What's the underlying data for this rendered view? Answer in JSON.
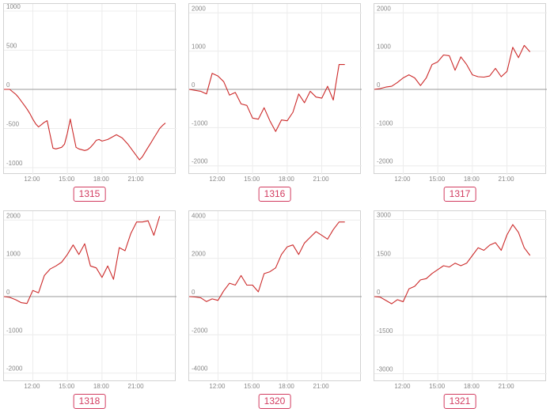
{
  "colors": {
    "line": "#cc2a2a",
    "grid": "#ececec",
    "zero": "#9a9a9a",
    "border": "#d2d2d2",
    "tick_text": "#888888",
    "badge": "#d23c60"
  },
  "chart_data": [
    {
      "type": "line",
      "label": "1315",
      "ylim": [
        -1050,
        1050
      ],
      "y_ticks": [
        1000,
        500,
        0,
        -500,
        -1000
      ],
      "y_tick_labels": [
        "1000",
        "500",
        "0",
        "-500",
        "-1000"
      ],
      "x_range": [
        9.5,
        23.5
      ],
      "x_ticks": [
        12,
        15,
        18,
        21
      ],
      "x_tick_labels": [
        "12:00",
        "15:00",
        "18:00",
        "21:00"
      ],
      "grid": true,
      "x": [
        9.5,
        9.75,
        10,
        10.25,
        10.5,
        10.75,
        11,
        11.25,
        11.5,
        11.75,
        12,
        12.25,
        12.5,
        12.75,
        13,
        13.25,
        13.5,
        13.75,
        14,
        14.25,
        14.5,
        14.75,
        15,
        15.25,
        15.5,
        15.75,
        16,
        16.25,
        16.5,
        16.75,
        17,
        17.25,
        17.5,
        17.75,
        18,
        18.25,
        18.5,
        18.75,
        19,
        19.25,
        19.5,
        19.75,
        20,
        20.25,
        20.5,
        20.75,
        21,
        21.25,
        21.5,
        21.75,
        22,
        22.25,
        22.5,
        22.75,
        23,
        23.25,
        23.5
      ],
      "y": [
        0,
        0,
        0,
        -30,
        -60,
        -100,
        -150,
        -200,
        -250,
        -310,
        -380,
        -440,
        -480,
        -450,
        -420,
        -400,
        -580,
        -750,
        -760,
        -750,
        -740,
        -700,
        -560,
        -380,
        -560,
        -740,
        -760,
        -770,
        -780,
        -770,
        -740,
        -700,
        -650,
        -640,
        -660,
        -650,
        -640,
        -620,
        -600,
        -580,
        -600,
        -620,
        -660,
        -700,
        -750,
        -800,
        -850,
        -900,
        -860,
        -800,
        -740,
        -680,
        -620,
        -560,
        -500,
        -460,
        -430
      ]
    },
    {
      "type": "line",
      "label": "1316",
      "ylim": [
        -2150,
        2150
      ],
      "y_ticks": [
        2000,
        1000,
        0,
        -1000,
        -2000
      ],
      "y_tick_labels": [
        "2000",
        "1000",
        "0",
        "-1000",
        "-2000"
      ],
      "x_range": [
        9.5,
        23.5
      ],
      "x_ticks": [
        12,
        15,
        18,
        21
      ],
      "x_tick_labels": [
        "12:00",
        "15:00",
        "18:00",
        "21:00"
      ],
      "grid": true,
      "x": [
        9.5,
        10.5,
        11,
        11.5,
        12,
        12.5,
        13,
        13.5,
        14,
        14.5,
        15,
        15.5,
        16,
        16.5,
        17,
        17.5,
        18,
        18.5,
        19,
        19.5,
        20,
        20.5,
        21,
        21.5,
        22,
        22.5,
        23
      ],
      "y": [
        0,
        -50,
        -120,
        420,
        350,
        200,
        -150,
        -80,
        -380,
        -420,
        -750,
        -780,
        -480,
        -820,
        -1100,
        -800,
        -820,
        -600,
        -120,
        -350,
        -50,
        -200,
        -230,
        80,
        -280,
        650,
        650
      ],
      "y_override_note": ""
    },
    {
      "type": "line",
      "label": "1317",
      "ylim": [
        -2150,
        2150
      ],
      "y_ticks": [
        2000,
        1000,
        0,
        -1000,
        -2000
      ],
      "y_tick_labels": [
        "2000",
        "1000",
        "0",
        "-1000",
        "-2000"
      ],
      "x_range": [
        9.5,
        23.5
      ],
      "x_ticks": [
        12,
        15,
        18,
        21
      ],
      "x_tick_labels": [
        "12:00",
        "15:00",
        "18:00",
        "21:00"
      ],
      "grid": true,
      "x": [
        9.5,
        10,
        10.5,
        11,
        11.5,
        12,
        12.5,
        13,
        13.5,
        14,
        14.5,
        15,
        15.5,
        16,
        16.5,
        17,
        17.5,
        18,
        18.5,
        19,
        19.5,
        20,
        20.5,
        21,
        21.5,
        22,
        22.5,
        23
      ],
      "y": [
        0,
        20,
        60,
        80,
        180,
        300,
        380,
        300,
        100,
        300,
        650,
        720,
        900,
        880,
        500,
        850,
        650,
        380,
        330,
        320,
        350,
        550,
        330,
        470,
        1100,
        830,
        1150,
        980
      ]
    },
    {
      "type": "line",
      "label": "1318",
      "ylim": [
        -2150,
        2150
      ],
      "y_ticks": [
        2000,
        1000,
        0,
        -1000,
        -2000
      ],
      "y_tick_labels": [
        "2000",
        "1000",
        "0",
        "-1000",
        "-2000"
      ],
      "x_range": [
        9.5,
        23.5
      ],
      "x_ticks": [
        12,
        15,
        18,
        21
      ],
      "x_tick_labels": [
        "12:00",
        "15:00",
        "18:00",
        "21:00"
      ],
      "grid": true,
      "x": [
        9.5,
        10,
        10.5,
        11,
        11.5,
        12,
        12.5,
        13,
        13.5,
        14,
        14.5,
        15,
        15.5,
        16,
        16.5,
        17,
        17.5,
        18,
        18.5,
        19,
        19.5,
        20,
        20.5,
        21,
        21.5,
        22,
        22.5,
        23
      ],
      "y": [
        0,
        -20,
        -80,
        -160,
        -180,
        160,
        100,
        550,
        720,
        800,
        900,
        1100,
        1350,
        1100,
        1380,
        800,
        750,
        500,
        800,
        450,
        1280,
        1200,
        1650,
        1950,
        1950,
        1980,
        1600,
        2100
      ]
    },
    {
      "type": "line",
      "label": "1320",
      "ylim": [
        -4300,
        4300
      ],
      "y_ticks": [
        4000,
        2000,
        0,
        -2000,
        -4000
      ],
      "y_tick_labels": [
        "4000",
        "2000",
        "0",
        "-2000",
        "-4000"
      ],
      "x_range": [
        9.5,
        23.5
      ],
      "x_ticks": [
        12,
        15,
        18,
        21
      ],
      "x_tick_labels": [
        "12:00",
        "15:00",
        "18:00",
        "21:00"
      ],
      "grid": true,
      "x": [
        9.5,
        10,
        10.5,
        11,
        11.5,
        12,
        12.5,
        13,
        13.5,
        14,
        14.5,
        15,
        15.5,
        16,
        16.5,
        17,
        17.5,
        18,
        18.5,
        19,
        19.5,
        20,
        20.5,
        21,
        21.5,
        22,
        22.5,
        23
      ],
      "y": [
        0,
        -20,
        -60,
        -260,
        -120,
        -200,
        300,
        700,
        600,
        1100,
        600,
        600,
        250,
        1200,
        1300,
        1500,
        2200,
        2600,
        2700,
        2200,
        2800,
        3100,
        3400,
        3200,
        3000,
        3500,
        3900,
        3900
      ]
    },
    {
      "type": "line",
      "label": "1321",
      "ylim": [
        -3200,
        3200
      ],
      "y_ticks": [
        3000,
        1500,
        0,
        -1500,
        -3000
      ],
      "y_tick_labels": [
        "3000",
        "1500",
        "0",
        "-1500",
        "-3000"
      ],
      "x_range": [
        9.5,
        23.5
      ],
      "x_ticks": [
        12,
        15,
        18,
        21
      ],
      "x_tick_labels": [
        "12:00",
        "15:00",
        "18:00",
        "21:00"
      ],
      "grid": true,
      "x": [
        9.5,
        10,
        10.5,
        11,
        11.5,
        12,
        12.5,
        13,
        13.5,
        14,
        14.5,
        15,
        15.5,
        16,
        16.5,
        17,
        17.5,
        18,
        18.5,
        19,
        19.5,
        20,
        20.5,
        21,
        21.5,
        22,
        22.5,
        23
      ],
      "y": [
        0,
        -20,
        -150,
        -280,
        -120,
        -200,
        300,
        400,
        650,
        700,
        900,
        1050,
        1200,
        1150,
        1300,
        1200,
        1300,
        1600,
        1900,
        1800,
        2000,
        2100,
        1800,
        2400,
        2800,
        2500,
        1900,
        1600
      ]
    }
  ]
}
